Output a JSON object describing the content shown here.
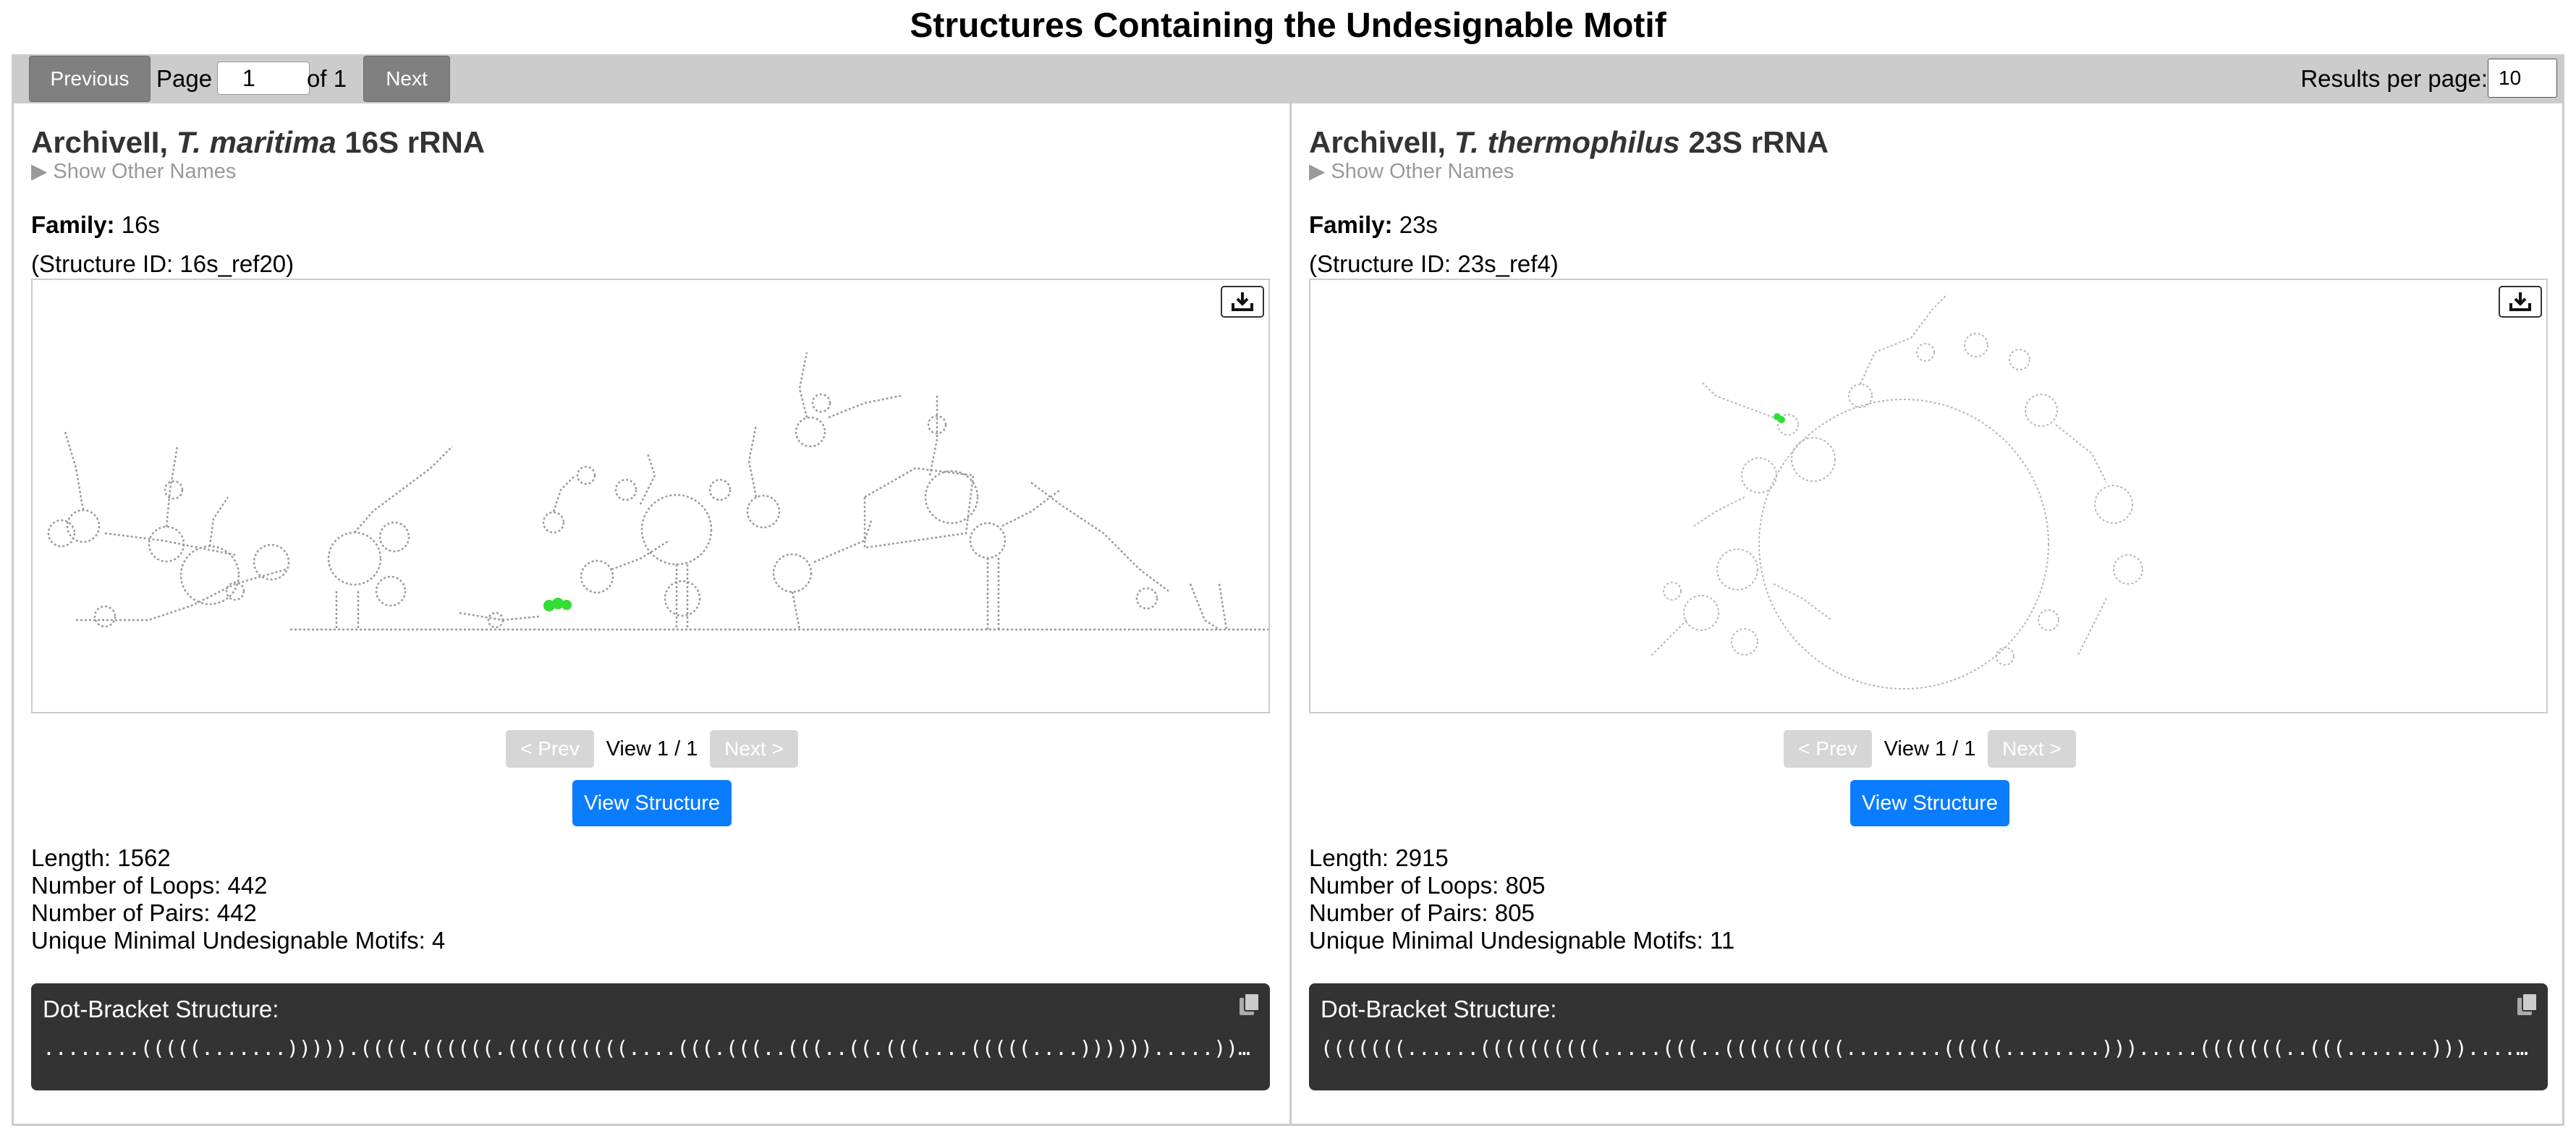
{
  "title": "Structures Containing the Undesignable Motif",
  "pagination": {
    "previous_label": "Previous",
    "page_label": "Page",
    "page_value": "1",
    "of_label": "of 1",
    "next_label": "Next",
    "results_label": "Results per page:",
    "results_value": "10"
  },
  "cards": [
    {
      "title_prefix": "ArchiveII, ",
      "title_species": "T. maritima",
      "title_suffix": " 16S rRNA",
      "other_names": "▶ Show Other Names",
      "family_label": "Family:",
      "family_value": "16s",
      "structure_id": "(Structure ID: 16s_ref20)",
      "nav_prev": "< Prev",
      "nav_view": "View 1 / 1",
      "nav_next": "Next >",
      "view_button": "View Structure",
      "length": "Length: 1562",
      "loops": "Number of Loops: 442",
      "pairs": "Number of Pairs: 442",
      "motifs": "Unique Minimal Undesignable Motifs: 4",
      "dot_title": "Dot-Bracket Structure:",
      "dot_bracket": "........(((((.......))))).((((.((((((.((((((((((....(((.(((..(((..((.(((....(((((....)))))).....))).)))))....."
    },
    {
      "title_prefix": "ArchiveII, ",
      "title_species": "T. thermophilus",
      "title_suffix": " 23S rRNA",
      "other_names": "▶ Show Other Names",
      "family_label": "Family:",
      "family_value": "23s",
      "structure_id": "(Structure ID: 23s_ref4)",
      "nav_prev": "< Prev",
      "nav_view": "View 1 / 1",
      "nav_next": "Next >",
      "view_button": "View Structure",
      "length": "Length: 2915",
      "loops": "Number of Loops: 805",
      "pairs": "Number of Pairs: 805",
      "motifs": "Unique Minimal Undesignable Motifs: 11",
      "dot_title": "Dot-Bracket Structure:",
      "dot_bracket": "(((((((......((((((((((.....(((..((((((((((........(((((........))).....(((((((..(((.......))).....))))))."
    }
  ],
  "colors": {
    "accent": "#0a7cff",
    "motif_highlight": "#33dd33",
    "toolbar_bg": "#cccccc",
    "dot_box_bg": "#333333"
  },
  "icons": [
    "download-icon",
    "copy-icon"
  ]
}
